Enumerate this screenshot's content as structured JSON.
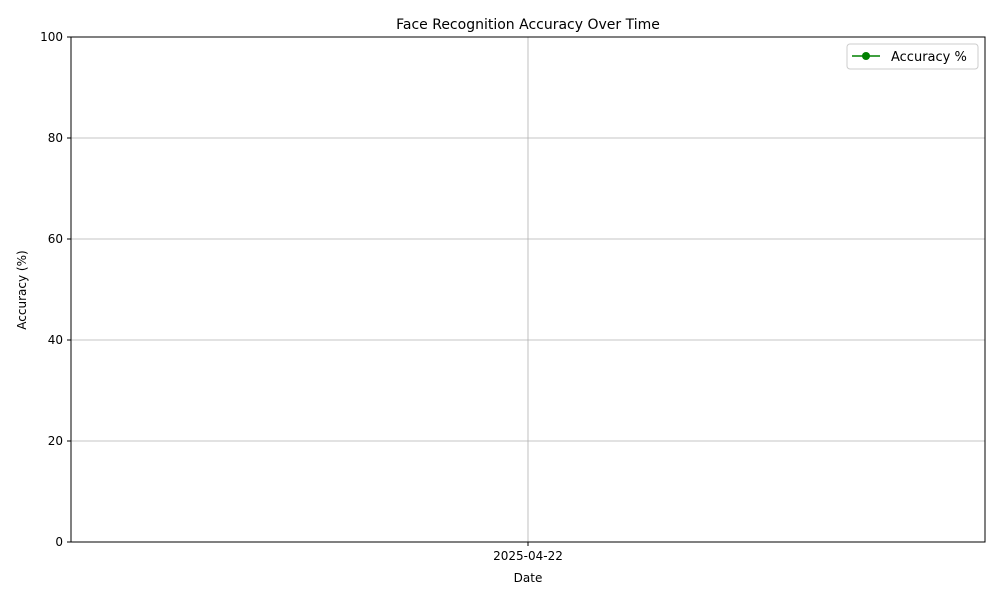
{
  "chart_data": {
    "type": "line",
    "title": "Face Recognition Accuracy Over Time",
    "xlabel": "Date",
    "ylabel": "Accuracy (%)",
    "x_ticks": [
      "2025-04-22"
    ],
    "y_ticks": [
      "0",
      "20",
      "40",
      "60",
      "80",
      "100"
    ],
    "ylim": [
      0,
      100
    ],
    "grid": true,
    "legend_position": "top-right",
    "series": [
      {
        "name": "Accuracy %",
        "color": "#008000",
        "marker": "circle",
        "x": [],
        "values": []
      }
    ]
  }
}
